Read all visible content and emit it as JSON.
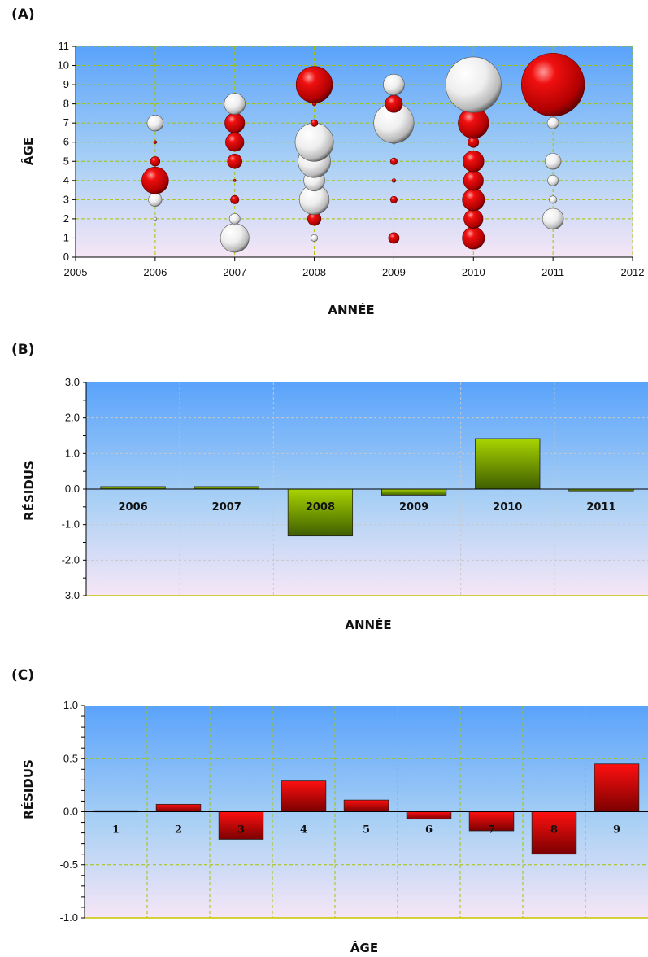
{
  "chart_data": [
    {
      "panel_label": "(A)",
      "type": "scatter",
      "subtype": "bubble",
      "xlabel": "ANNÉE",
      "ylabel": "ÂGE",
      "xlim": [
        2005,
        2012
      ],
      "ylim": [
        0,
        11
      ],
      "x_ticks": [
        2005,
        2006,
        2007,
        2008,
        2009,
        2010,
        2011,
        2012
      ],
      "y_ticks": [
        0,
        1,
        2,
        3,
        4,
        5,
        6,
        7,
        8,
        9,
        10,
        11
      ],
      "grid": true,
      "colors": {
        "positive": "#d40000",
        "negative": "#ffffff"
      },
      "series": [
        {
          "year": 2006,
          "age": 2,
          "size": 0.08,
          "sign": "neg"
        },
        {
          "year": 2006,
          "age": 3,
          "size": 0.35,
          "sign": "neg"
        },
        {
          "year": 2006,
          "age": 4,
          "size": 0.7,
          "sign": "pos"
        },
        {
          "year": 2006,
          "age": 5,
          "size": 0.25,
          "sign": "pos"
        },
        {
          "year": 2006,
          "age": 6,
          "size": 0.08,
          "sign": "pos"
        },
        {
          "year": 2006,
          "age": 7,
          "size": 0.42,
          "sign": "neg"
        },
        {
          "year": 2007,
          "age": 1,
          "size": 0.75,
          "sign": "neg"
        },
        {
          "year": 2007,
          "age": 2,
          "size": 0.28,
          "sign": "neg"
        },
        {
          "year": 2007,
          "age": 3,
          "size": 0.22,
          "sign": "pos"
        },
        {
          "year": 2007,
          "age": 4,
          "size": 0.05,
          "sign": "pos"
        },
        {
          "year": 2007,
          "age": 5,
          "size": 0.38,
          "sign": "pos"
        },
        {
          "year": 2007,
          "age": 6,
          "size": 0.48,
          "sign": "pos"
        },
        {
          "year": 2007,
          "age": 7,
          "size": 0.52,
          "sign": "pos"
        },
        {
          "year": 2007,
          "age": 8,
          "size": 0.55,
          "sign": "neg"
        },
        {
          "year": 2008,
          "age": 1,
          "size": 0.18,
          "sign": "neg"
        },
        {
          "year": 2008,
          "age": 2,
          "size": 0.35,
          "sign": "pos"
        },
        {
          "year": 2008,
          "age": 3,
          "size": 0.78,
          "sign": "neg"
        },
        {
          "year": 2008,
          "age": 4,
          "size": 0.55,
          "sign": "neg"
        },
        {
          "year": 2008,
          "age": 5,
          "size": 0.85,
          "sign": "neg"
        },
        {
          "year": 2008,
          "age": 6,
          "size": 1.0,
          "sign": "neg"
        },
        {
          "year": 2008,
          "age": 7,
          "size": 0.18,
          "sign": "pos"
        },
        {
          "year": 2008,
          "age": 8,
          "size": 0.1,
          "sign": "pos"
        },
        {
          "year": 2008,
          "age": 9,
          "size": 0.95,
          "sign": "pos"
        },
        {
          "year": 2009,
          "age": 1,
          "size": 0.28,
          "sign": "pos"
        },
        {
          "year": 2009,
          "age": 3,
          "size": 0.18,
          "sign": "pos"
        },
        {
          "year": 2009,
          "age": 4,
          "size": 0.1,
          "sign": "pos"
        },
        {
          "year": 2009,
          "age": 5,
          "size": 0.18,
          "sign": "pos"
        },
        {
          "year": 2009,
          "age": 6,
          "size": 0.1,
          "sign": "neg"
        },
        {
          "year": 2009,
          "age": 7,
          "size": 1.05,
          "sign": "neg"
        },
        {
          "year": 2009,
          "age": 8,
          "size": 0.45,
          "sign": "pos"
        },
        {
          "year": 2009,
          "age": 9,
          "size": 0.55,
          "sign": "neg"
        },
        {
          "year": 2010,
          "age": 1,
          "size": 0.58,
          "sign": "pos"
        },
        {
          "year": 2010,
          "age": 2,
          "size": 0.5,
          "sign": "pos"
        },
        {
          "year": 2010,
          "age": 3,
          "size": 0.58,
          "sign": "pos"
        },
        {
          "year": 2010,
          "age": 4,
          "size": 0.52,
          "sign": "pos"
        },
        {
          "year": 2010,
          "age": 5,
          "size": 0.55,
          "sign": "pos"
        },
        {
          "year": 2010,
          "age": 6,
          "size": 0.28,
          "sign": "pos"
        },
        {
          "year": 2010,
          "age": 7,
          "size": 0.8,
          "sign": "pos"
        },
        {
          "year": 2010,
          "age": 9,
          "size": 1.45,
          "sign": "neg"
        },
        {
          "year": 2011,
          "age": 2,
          "size": 0.55,
          "sign": "neg"
        },
        {
          "year": 2011,
          "age": 3,
          "size": 0.2,
          "sign": "neg"
        },
        {
          "year": 2011,
          "age": 4,
          "size": 0.28,
          "sign": "neg"
        },
        {
          "year": 2011,
          "age": 5,
          "size": 0.42,
          "sign": "neg"
        },
        {
          "year": 2011,
          "age": 7,
          "size": 0.3,
          "sign": "neg"
        },
        {
          "year": 2011,
          "age": 9,
          "size": 1.65,
          "sign": "pos"
        }
      ]
    },
    {
      "panel_label": "(B)",
      "type": "bar",
      "xlabel": "ANNÉE",
      "ylabel": "RÉSIDUS",
      "categories": [
        "2006",
        "2007",
        "2008",
        "2009",
        "2010",
        "2011"
      ],
      "values": [
        0.07,
        0.07,
        -1.32,
        -0.17,
        1.42,
        -0.05
      ],
      "ylim": [
        -3.0,
        3.0
      ],
      "y_ticks": [
        "3.0",
        "2.0",
        "1.0",
        "0.0",
        "-1.0",
        "-2.0",
        "-3.0"
      ],
      "grid": true,
      "bar_color": "#8fbf00"
    },
    {
      "panel_label": "(C)",
      "type": "bar",
      "xlabel": "ÂGE",
      "ylabel": "RÉSIDUS",
      "categories": [
        "1",
        "2",
        "3",
        "4",
        "5",
        "6",
        "7",
        "8",
        "9"
      ],
      "values": [
        0.01,
        0.07,
        -0.26,
        0.29,
        0.11,
        -0.07,
        -0.18,
        -0.4,
        0.45
      ],
      "ylim": [
        -1.0,
        1.0
      ],
      "y_ticks": [
        "1.0",
        "0.5",
        "0.0",
        "-0.5",
        "-1.0"
      ],
      "grid": true,
      "bar_color": "#d40000"
    }
  ]
}
